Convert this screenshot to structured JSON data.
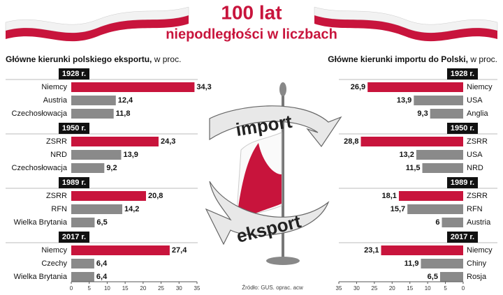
{
  "header": {
    "title": "100 lat",
    "subtitle": "niepodległości w liczbach"
  },
  "center": {
    "top_label": "import",
    "bottom_label": "eksport",
    "source": "Źródło: GUS. oprac. acw"
  },
  "chart_data": [
    {
      "type": "bar",
      "orientation": "horizontal",
      "title": "Główne kierunki polskiego eksportu,",
      "title_note": "w proc.",
      "x_reversed": false,
      "xlim": [
        0,
        35
      ],
      "xticks": [
        0,
        5,
        10,
        15,
        20,
        25,
        30,
        35
      ],
      "highlight_color": "#c8143c",
      "color": "#8a8a8a",
      "groups": [
        {
          "name": "1928 r.",
          "categories": [
            "Niemcy",
            "Austria",
            "Czechosłowacja"
          ],
          "values": [
            34.3,
            12.4,
            11.8
          ],
          "value_labels": [
            "34,3",
            "12,4",
            "11,8"
          ]
        },
        {
          "name": "1950 r.",
          "categories": [
            "ZSRR",
            "NRD",
            "Czechosłowacja"
          ],
          "values": [
            24.3,
            13.9,
            9.2
          ],
          "value_labels": [
            "24,3",
            "13,9",
            "9,2"
          ]
        },
        {
          "name": "1989 r.",
          "categories": [
            "ZSRR",
            "RFN",
            "Wielka Brytania"
          ],
          "values": [
            20.8,
            14.2,
            6.5
          ],
          "value_labels": [
            "20,8",
            "14,2",
            "6,5"
          ]
        },
        {
          "name": "2017 r.",
          "categories": [
            "Niemcy",
            "Czechy",
            "Wielka Brytania"
          ],
          "values": [
            27.4,
            6.4,
            6.4
          ],
          "value_labels": [
            "27,4",
            "6,4",
            "6,4"
          ]
        }
      ]
    },
    {
      "type": "bar",
      "orientation": "horizontal",
      "title": "Główne kierunki importu do Polski,",
      "title_note": "w proc.",
      "x_reversed": true,
      "xlim": [
        0,
        35
      ],
      "xticks": [
        35,
        30,
        25,
        20,
        15,
        10,
        5,
        0
      ],
      "highlight_color": "#c8143c",
      "color": "#8a8a8a",
      "groups": [
        {
          "name": "1928 r.",
          "categories": [
            "Niemcy",
            "USA",
            "Anglia"
          ],
          "values": [
            26.9,
            13.9,
            9.3
          ],
          "value_labels": [
            "26,9",
            "13,9",
            "9,3"
          ]
        },
        {
          "name": "1950 r.",
          "categories": [
            "ZSRR",
            "USA",
            "NRD"
          ],
          "values": [
            28.8,
            13.2,
            11.5
          ],
          "value_labels": [
            "28,8",
            "13,2",
            "11,5"
          ]
        },
        {
          "name": "1989 r.",
          "categories": [
            "ZSRR",
            "RFN",
            "Austria"
          ],
          "values": [
            18.1,
            15.7,
            6
          ],
          "value_labels": [
            "18,1",
            "15,7",
            "6"
          ]
        },
        {
          "name": "2017 r.",
          "categories": [
            "Niemcy",
            "Chiny",
            "Rosja"
          ],
          "values": [
            23.1,
            11.9,
            6.5
          ],
          "value_labels": [
            "23,1",
            "11,9",
            "6,5"
          ]
        }
      ]
    }
  ]
}
